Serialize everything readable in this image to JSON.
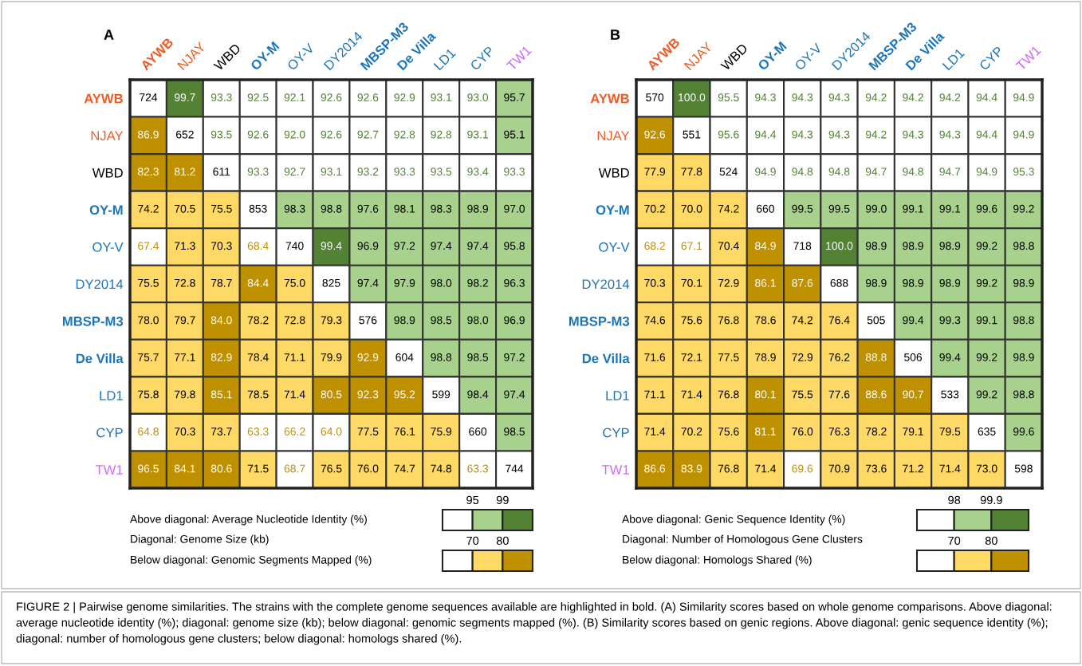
{
  "chart_data": [
    {
      "type": "heatmap",
      "title": "A",
      "categories": [
        "AYWB",
        "NJAY",
        "WBD",
        "OY-M",
        "OY-V",
        "DY2014",
        "MBSP-M3",
        "De Villa",
        "LD1",
        "CYP",
        "TW1"
      ],
      "y_categories": [
        "AYWB",
        "NJAY",
        "WBD",
        "OY-M",
        "OY-V",
        "DY2014",
        "MBSP-M3",
        "De Villa",
        "LD1",
        "CYP",
        "TW1"
      ],
      "colors": [
        "#f15a24",
        "#f15a24",
        "#000000",
        "#1b75bc",
        "#1b75bc",
        "#1b75bc",
        "#1b75bc",
        "#1b75bc",
        "#1b75bc",
        "#1b75bc",
        "#cc66ff"
      ],
      "cells": [
        [
          724,
          99.7,
          93.3,
          92.5,
          92.1,
          92.6,
          92.6,
          92.9,
          93.1,
          93.0,
          95.7
        ],
        [
          86.9,
          652,
          93.5,
          92.6,
          92.0,
          92.6,
          92.7,
          92.8,
          92.8,
          93.1,
          95.1
        ],
        [
          82.3,
          81.2,
          611,
          93.3,
          92.7,
          93.1,
          93.2,
          93.3,
          93.5,
          93.4,
          93.3
        ],
        [
          74.2,
          70.5,
          75.5,
          853,
          98.3,
          98.8,
          97.6,
          98.1,
          98.3,
          98.9,
          97.0
        ],
        [
          67.4,
          71.3,
          70.3,
          68.4,
          740,
          99.4,
          96.9,
          97.2,
          97.4,
          97.4,
          95.8
        ],
        [
          75.5,
          72.8,
          78.7,
          84.4,
          75.0,
          825,
          97.4,
          97.9,
          98.0,
          98.2,
          96.3
        ],
        [
          78.0,
          79.7,
          84.0,
          78.2,
          72.8,
          79.3,
          576,
          98.9,
          98.5,
          98.0,
          96.9
        ],
        [
          75.7,
          77.1,
          82.9,
          78.4,
          71.1,
          79.9,
          92.9,
          604,
          98.8,
          98.5,
          97.2
        ],
        [
          75.8,
          79.8,
          85.1,
          78.5,
          71.4,
          80.5,
          92.3,
          95.2,
          599,
          98.4,
          97.4
        ],
        [
          64.8,
          70.3,
          73.7,
          63.3,
          66.2,
          64.0,
          77.5,
          76.1,
          75.9,
          660,
          98.5
        ],
        [
          96.5,
          84.1,
          80.6,
          71.5,
          68.7,
          76.5,
          76.0,
          74.7,
          74.8,
          63.3,
          744
        ]
      ],
      "cell_labels": [
        [
          "724",
          "99.7",
          "93.3",
          "92.5",
          "92.1",
          "92.6",
          "92.6",
          "92.9",
          "93.1",
          "93.0",
          "95.7"
        ],
        [
          "86.9",
          "652",
          "93.5",
          "92.6",
          "92.0",
          "92.6",
          "92.7",
          "92.8",
          "92.8",
          "93.1",
          "95.1"
        ],
        [
          "82.3",
          "81.2",
          "611",
          "93.3",
          "92.7",
          "93.1",
          "93.2",
          "93.3",
          "93.5",
          "93.4",
          "93.3"
        ],
        [
          "74.2",
          "70.5",
          "75.5",
          "853",
          "98.3",
          "98.8",
          "97.6",
          "98.1",
          "98.3",
          "98.9",
          "97.0"
        ],
        [
          "67.4",
          "71.3",
          "70.3",
          "68.4",
          "740",
          "99.4",
          "96.9",
          "97.2",
          "97.4",
          "97.4",
          "95.8"
        ],
        [
          "75.5",
          "72.8",
          "78.7",
          "84.4",
          "75.0",
          "825",
          "97.4",
          "97.9",
          "98.0",
          "98.2",
          "96.3"
        ],
        [
          "78.0",
          "79.7",
          "84.0",
          "78.2",
          "72.8",
          "79.3",
          "576",
          "98.9",
          "98.5",
          "98.0",
          "96.9"
        ],
        [
          "75.7",
          "77.1",
          "82.9",
          "78.4",
          "71.1",
          "79.9",
          "92.9",
          "604",
          "98.8",
          "98.5",
          "97.2"
        ],
        [
          "75.8",
          "79.8",
          "85.1",
          "78.5",
          "71.4",
          "80.5",
          "92.3",
          "95.2",
          "599",
          "98.4",
          "97.4"
        ],
        [
          "64.8",
          "70.3",
          "73.7",
          "63.3",
          "66.2",
          "64.0",
          "77.5",
          "76.1",
          "75.9",
          "660",
          "98.5"
        ],
        [
          "96.5",
          "84.1",
          "80.6",
          "71.5",
          "68.7",
          "76.5",
          "76.0",
          "74.7",
          "74.8",
          "63.3",
          "744"
        ]
      ],
      "data_labels": true,
      "annotations": [
        "Above diagonal: Average Nucleotide Identity (%)",
        "95",
        "99",
        "Diagonal: Genome Size (kb)",
        "Below diagonal: Genomic Segments Mapped (%)",
        "70",
        "80"
      ]
    },
    {
      "type": "heatmap",
      "title": "B",
      "categories": [
        "AYWB",
        "NJAY",
        "WBD",
        "OY-M",
        "OY-V",
        "DY2014",
        "MBSP-M3",
        "De Villa",
        "LD1",
        "CYP",
        "TW1"
      ],
      "y_categories": [
        "AYWB",
        "NJAY",
        "WBD",
        "OY-M",
        "OY-V",
        "DY2014",
        "MBSP-M3",
        "De Villa",
        "LD1",
        "CYP",
        "TW1"
      ],
      "colors": [
        "#f15a24",
        "#f15a24",
        "#000000",
        "#1b75bc",
        "#1b75bc",
        "#1b75bc",
        "#1b75bc",
        "#1b75bc",
        "#1b75bc",
        "#1b75bc",
        "#cc66ff"
      ],
      "cells": [
        [
          570,
          100.0,
          95.5,
          94.3,
          94.3,
          94.3,
          94.2,
          94.2,
          94.2,
          94.4,
          94.9
        ],
        [
          92.6,
          551,
          95.6,
          94.4,
          94.3,
          94.3,
          94.2,
          94.3,
          94.3,
          94.4,
          94.9
        ],
        [
          77.9,
          77.8,
          524,
          94.9,
          94.8,
          94.8,
          94.7,
          94.8,
          94.7,
          94.9,
          95.3
        ],
        [
          70.2,
          70.0,
          74.2,
          660,
          99.5,
          99.5,
          99.0,
          99.1,
          99.1,
          99.6,
          99.2
        ],
        [
          68.2,
          67.1,
          70.4,
          84.9,
          718,
          100.0,
          98.9,
          98.9,
          98.9,
          99.2,
          98.8
        ],
        [
          70.3,
          70.1,
          72.9,
          86.1,
          87.6,
          688,
          98.9,
          98.9,
          98.9,
          99.2,
          98.9
        ],
        [
          74.6,
          75.6,
          76.8,
          78.6,
          74.2,
          76.4,
          505,
          99.4,
          99.3,
          99.1,
          98.8
        ],
        [
          71.6,
          72.1,
          77.5,
          78.9,
          72.9,
          76.2,
          88.8,
          506,
          99.4,
          99.2,
          98.9
        ],
        [
          71.1,
          71.4,
          76.8,
          80.1,
          75.5,
          77.6,
          88.6,
          90.7,
          533,
          99.2,
          98.8
        ],
        [
          71.4,
          70.2,
          75.6,
          81.1,
          76.0,
          76.3,
          78.2,
          79.1,
          79.5,
          635,
          99.6
        ],
        [
          86.6,
          83.9,
          76.8,
          71.4,
          69.6,
          70.9,
          73.6,
          71.2,
          71.4,
          73.0,
          598
        ]
      ],
      "cell_labels": [
        [
          "570",
          "100.0",
          "95.5",
          "94.3",
          "94.3",
          "94.3",
          "94.2",
          "94.2",
          "94.2",
          "94.4",
          "94.9"
        ],
        [
          "92.6",
          "551",
          "95.6",
          "94.4",
          "94.3",
          "94.3",
          "94.2",
          "94.3",
          "94.3",
          "94.4",
          "94.9"
        ],
        [
          "77.9",
          "77.8",
          "524",
          "94.9",
          "94.8",
          "94.8",
          "94.7",
          "94.8",
          "94.7",
          "94.9",
          "95.3"
        ],
        [
          "70.2",
          "70.0",
          "74.2",
          "660",
          "99.5",
          "99.5",
          "99.0",
          "99.1",
          "99.1",
          "99.6",
          "99.2"
        ],
        [
          "68.2",
          "67.1",
          "70.4",
          "84.9",
          "718",
          "100.0",
          "98.9",
          "98.9",
          "98.9",
          "99.2",
          "98.8"
        ],
        [
          "70.3",
          "70.1",
          "72.9",
          "86.1",
          "87.6",
          "688",
          "98.9",
          "98.9",
          "98.9",
          "99.2",
          "98.9"
        ],
        [
          "74.6",
          "75.6",
          "76.8",
          "78.6",
          "74.2",
          "76.4",
          "505",
          "99.4",
          "99.3",
          "99.1",
          "98.8"
        ],
        [
          "71.6",
          "72.1",
          "77.5",
          "78.9",
          "72.9",
          "76.2",
          "88.8",
          "506",
          "99.4",
          "99.2",
          "98.9"
        ],
        [
          "71.1",
          "71.4",
          "76.8",
          "80.1",
          "75.5",
          "77.6",
          "88.6",
          "90.7",
          "533",
          "99.2",
          "98.8"
        ],
        [
          "71.4",
          "70.2",
          "75.6",
          "81.1",
          "76.0",
          "76.3",
          "78.2",
          "79.1",
          "79.5",
          "635",
          "99.6"
        ],
        [
          "86.6",
          "83.9",
          "76.8",
          "71.4",
          "69.6",
          "70.9",
          "73.6",
          "71.2",
          "71.4",
          "73.0",
          "598"
        ]
      ],
      "data_labels": true,
      "annotations": [
        "Above diagonal: Genic Sequence Identity (%)",
        "98",
        "99.9",
        "Diagonal: Number of Homologous Gene Clusters",
        "Below diagonal: Homologs Shared (%)",
        "70",
        "80",
        "FIGURE 2 | Pairwise genome similarities. The strains with the complete genome sequences available are highlighted in bold. (A) Similarity scores based on whole genome comparisons. Above diagonal: average nucleotide identity (%); diagonal: genome size (kb); below diagonal: genomic segments mapped (%). (B) Similarity scores based on genic regions. Above diagonal: genic sequence identity (%); diagonal: number of homologous gene clusters; below diagonal: homologs shared (%)."
      ]
    }
  ]
}
